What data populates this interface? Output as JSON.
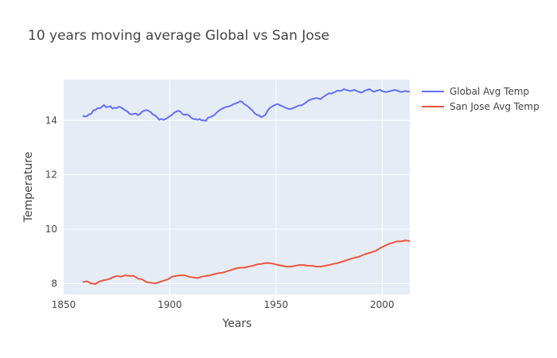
{
  "chart_data": {
    "type": "line",
    "title": "10 years moving average Global vs San Jose",
    "xlabel": "Years",
    "ylabel": "Temperature",
    "xlim": [
      1850,
      2013
    ],
    "ylim": [
      7.6,
      15.5
    ],
    "x_ticks": [
      1850,
      1900,
      1950,
      2000
    ],
    "y_ticks": [
      8,
      10,
      12,
      14
    ],
    "grid": true,
    "legend_position": "top-right",
    "series": [
      {
        "name": "Global Avg Temp",
        "color": "#636efa",
        "x": [
          1859,
          1860,
          1861,
          1862,
          1863,
          1864,
          1865,
          1866,
          1867,
          1868,
          1869,
          1870,
          1871,
          1872,
          1873,
          1874,
          1875,
          1876,
          1877,
          1878,
          1879,
          1880,
          1881,
          1882,
          1883,
          1884,
          1885,
          1886,
          1887,
          1888,
          1889,
          1890,
          1891,
          1892,
          1893,
          1894,
          1895,
          1896,
          1897,
          1898,
          1899,
          1900,
          1901,
          1902,
          1903,
          1904,
          1905,
          1906,
          1907,
          1908,
          1909,
          1910,
          1911,
          1912,
          1913,
          1914,
          1915,
          1916,
          1917,
          1918,
          1919,
          1920,
          1921,
          1922,
          1923,
          1924,
          1925,
          1926,
          1927,
          1928,
          1929,
          1930,
          1931,
          1932,
          1933,
          1934,
          1935,
          1936,
          1937,
          1938,
          1939,
          1940,
          1941,
          1942,
          1943,
          1944,
          1945,
          1946,
          1947,
          1948,
          1949,
          1950,
          1951,
          1952,
          1953,
          1954,
          1955,
          1956,
          1957,
          1958,
          1959,
          1960,
          1961,
          1962,
          1963,
          1964,
          1965,
          1966,
          1967,
          1968,
          1969,
          1970,
          1971,
          1972,
          1973,
          1974,
          1975,
          1976,
          1977,
          1978,
          1979,
          1980,
          1981,
          1982,
          1983,
          1984,
          1985,
          1986,
          1987,
          1988,
          1989,
          1990,
          1991,
          1992,
          1993,
          1994,
          1995,
          1996,
          1997,
          1998,
          1999,
          2000,
          2001,
          2002,
          2003,
          2004,
          2005,
          2006,
          2007,
          2008,
          2009,
          2010,
          2011,
          2012,
          2013
        ],
        "values": [
          14.17,
          14.14,
          14.16,
          14.22,
          14.24,
          14.37,
          14.38,
          14.45,
          14.44,
          14.5,
          14.56,
          14.48,
          14.5,
          14.52,
          14.43,
          14.47,
          14.45,
          14.5,
          14.48,
          14.42,
          14.37,
          14.33,
          14.24,
          14.22,
          14.24,
          14.25,
          14.19,
          14.24,
          14.32,
          14.36,
          14.38,
          14.35,
          14.3,
          14.22,
          14.18,
          14.12,
          14.02,
          14.05,
          14.02,
          14.05,
          14.1,
          14.15,
          14.2,
          14.28,
          14.32,
          14.35,
          14.32,
          14.22,
          14.2,
          14.22,
          14.18,
          14.1,
          14.05,
          14.05,
          14.02,
          14.05,
          14.0,
          14.0,
          13.98,
          14.1,
          14.12,
          14.15,
          14.2,
          14.28,
          14.35,
          14.4,
          14.45,
          14.48,
          14.5,
          14.52,
          14.55,
          14.6,
          14.62,
          14.65,
          14.7,
          14.68,
          14.6,
          14.55,
          14.5,
          14.42,
          14.35,
          14.25,
          14.2,
          14.18,
          14.12,
          14.15,
          14.2,
          14.35,
          14.45,
          14.5,
          14.55,
          14.58,
          14.6,
          14.55,
          14.52,
          14.48,
          14.45,
          14.42,
          14.42,
          14.45,
          14.48,
          14.52,
          14.55,
          14.55,
          14.6,
          14.65,
          14.72,
          14.75,
          14.78,
          14.8,
          14.82,
          14.8,
          14.78,
          14.85,
          14.9,
          14.95,
          15.0,
          14.98,
          15.02,
          15.05,
          15.1,
          15.08,
          15.1,
          15.15,
          15.12,
          15.1,
          15.08,
          15.1,
          15.12,
          15.08,
          15.05,
          15.02,
          15.05,
          15.1,
          15.12,
          15.15,
          15.1,
          15.05,
          15.08,
          15.1,
          15.12,
          15.08,
          15.05,
          15.04,
          15.06,
          15.08,
          15.1,
          15.12,
          15.1,
          15.06,
          15.04,
          15.06,
          15.08,
          15.06,
          15.05
        ]
      },
      {
        "name": "San Jose Avg Temp",
        "color": "#ef553b",
        "x": [
          1859,
          1861,
          1863,
          1865,
          1867,
          1869,
          1871,
          1873,
          1875,
          1877,
          1879,
          1881,
          1883,
          1885,
          1887,
          1889,
          1891,
          1893,
          1895,
          1897,
          1899,
          1901,
          1903,
          1905,
          1907,
          1909,
          1911,
          1913,
          1915,
          1917,
          1919,
          1921,
          1923,
          1925,
          1927,
          1929,
          1931,
          1933,
          1935,
          1937,
          1939,
          1941,
          1943,
          1945,
          1947,
          1949,
          1951,
          1953,
          1955,
          1957,
          1959,
          1961,
          1963,
          1965,
          1967,
          1969,
          1971,
          1973,
          1975,
          1977,
          1979,
          1981,
          1983,
          1985,
          1987,
          1989,
          1991,
          1993,
          1995,
          1997,
          1999,
          2001,
          2003,
          2005,
          2007,
          2009,
          2011,
          2013
        ],
        "values": [
          8.05,
          8.08,
          8.0,
          7.98,
          8.08,
          8.12,
          8.15,
          8.22,
          8.28,
          8.25,
          8.3,
          8.28,
          8.28,
          8.18,
          8.15,
          8.05,
          8.03,
          8.0,
          8.05,
          8.1,
          8.15,
          8.25,
          8.28,
          8.3,
          8.3,
          8.25,
          8.22,
          8.2,
          8.25,
          8.28,
          8.3,
          8.35,
          8.38,
          8.4,
          8.45,
          8.5,
          8.55,
          8.58,
          8.58,
          8.62,
          8.65,
          8.7,
          8.72,
          8.75,
          8.75,
          8.72,
          8.68,
          8.65,
          8.62,
          8.62,
          8.65,
          8.68,
          8.68,
          8.65,
          8.65,
          8.62,
          8.62,
          8.65,
          8.68,
          8.72,
          8.75,
          8.8,
          8.85,
          8.9,
          8.95,
          8.98,
          9.05,
          9.1,
          9.15,
          9.2,
          9.3,
          9.38,
          9.45,
          9.5,
          9.55,
          9.55,
          9.58,
          9.56
        ]
      }
    ]
  }
}
